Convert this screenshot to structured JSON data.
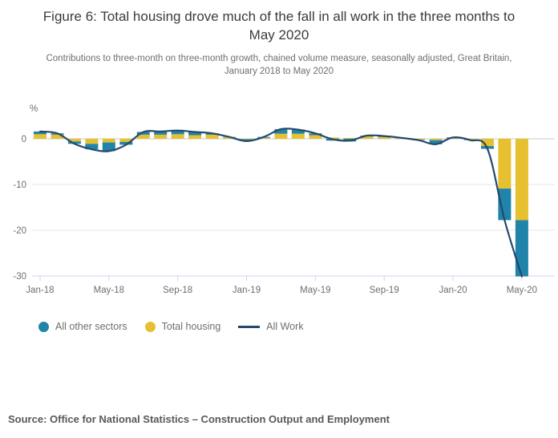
{
  "source": "Source: Office for National Statistics – Construction Output and Employment",
  "chart_data": {
    "type": "bar",
    "variant": "stacked-bar-with-line-overlay",
    "title": "Figure 6: Total housing drove much of the fall in all work in the three months to May 2020",
    "subtitle": "Contributions to three-month on three-month growth, chained volume measure, seasonally adjusted, Great Britain, January 2018 to May 2020",
    "ylabel": "%",
    "grid": true,
    "legend_position": "bottom",
    "ylim": [
      -31,
      3
    ],
    "yticks": [
      0,
      -10,
      -20,
      -30
    ],
    "categories": [
      "Jan-18",
      "Feb-18",
      "Mar-18",
      "Apr-18",
      "May-18",
      "Jun-18",
      "Jul-18",
      "Aug-18",
      "Sep-18",
      "Oct-18",
      "Nov-18",
      "Dec-18",
      "Jan-19",
      "Feb-19",
      "Mar-19",
      "Apr-19",
      "May-19",
      "Jun-19",
      "Jul-19",
      "Aug-19",
      "Sep-19",
      "Oct-19",
      "Nov-19",
      "Dec-19",
      "Jan-20",
      "Feb-20",
      "Mar-20",
      "Apr-20",
      "May-20"
    ],
    "x_tick_labels": [
      "Jan-18",
      "May-18",
      "Sep-18",
      "Jan-19",
      "May-19",
      "Sep-19",
      "Jan-20",
      "May-20"
    ],
    "stack_order_from_zero": [
      "Total housing",
      "All other sectors"
    ],
    "series": [
      {
        "name": "All other sectors",
        "type": "bar",
        "color": "#2083a9",
        "values": [
          0.6,
          0.3,
          -0.5,
          -1.2,
          -1.9,
          -0.6,
          0.6,
          0.7,
          0.8,
          0.7,
          0.3,
          0.1,
          -0.4,
          0.2,
          1.0,
          0.9,
          0.4,
          -0.4,
          -0.6,
          0.2,
          0.2,
          0.0,
          -0.1,
          -0.9,
          0.2,
          -0.1,
          -0.6,
          -6.9,
          -12.3
        ]
      },
      {
        "name": "Total housing",
        "type": "bar",
        "color": "#e6c02f",
        "values": [
          1.0,
          0.9,
          -0.6,
          -1.1,
          -0.8,
          -0.7,
          0.9,
          0.9,
          1.0,
          0.8,
          0.9,
          0.3,
          -0.1,
          0.2,
          1.1,
          1.1,
          0.8,
          0.3,
          0.2,
          0.5,
          0.4,
          0.2,
          -0.2,
          -0.3,
          0.1,
          -0.2,
          -1.6,
          -10.9,
          -17.8
        ]
      },
      {
        "name": "All Work",
        "type": "line",
        "color": "#25496b",
        "values": [
          1.6,
          1.2,
          -1.1,
          -2.3,
          -2.7,
          -1.3,
          1.5,
          1.6,
          1.8,
          1.5,
          1.2,
          0.4,
          -0.5,
          0.4,
          2.1,
          2.0,
          1.2,
          -0.1,
          -0.4,
          0.7,
          0.6,
          0.2,
          -0.3,
          -1.2,
          0.3,
          -0.3,
          -2.2,
          -17.8,
          -30.1
        ]
      }
    ],
    "axis_colors": {
      "axis_line": "#ccd6eb",
      "gridline": "#e6e6e6",
      "zero_line": "#c8c8c8",
      "tick_label": "#6e6e6e"
    }
  }
}
